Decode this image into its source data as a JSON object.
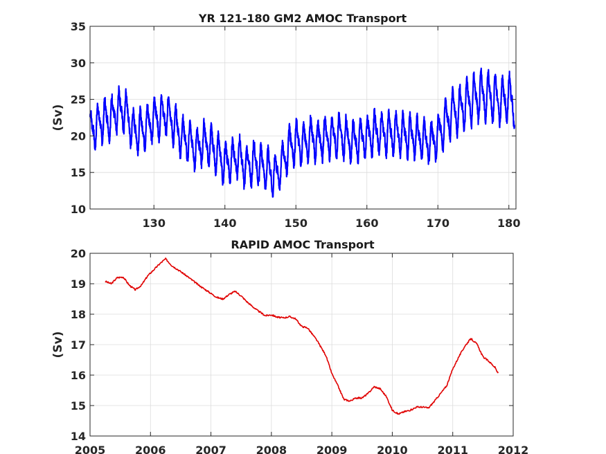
{
  "chart_data": [
    {
      "type": "line",
      "title": "YR 121-180 GM2 AMOC Transport",
      "xlabel": "",
      "ylabel": "(Sv)",
      "xlim": [
        121,
        181
      ],
      "ylim": [
        10,
        35
      ],
      "xticks": [
        130,
        140,
        150,
        160,
        170,
        180
      ],
      "yticks": [
        10,
        15,
        20,
        25,
        30,
        35
      ],
      "grid": true,
      "color": "#0000ff",
      "series": [
        {
          "x": [
            121,
            122,
            123,
            124,
            125,
            126,
            127,
            128,
            129,
            130,
            131,
            132,
            133,
            134,
            135,
            136,
            137,
            138,
            139,
            140,
            141,
            142,
            143,
            144,
            145,
            146,
            147,
            148,
            149,
            150,
            151,
            152,
            153,
            154,
            155,
            156,
            157,
            158,
            159,
            160,
            161,
            162,
            163,
            164,
            165,
            166,
            167,
            168,
            169,
            170,
            171,
            172,
            173,
            174,
            175,
            176,
            177,
            178,
            179,
            180,
            181
          ],
          "y": [
            20.5,
            21.5,
            22.2,
            22.5,
            23.5,
            23.5,
            20.7,
            20.7,
            21.3,
            22.5,
            22.5,
            23.0,
            21.2,
            19.8,
            19.2,
            18.2,
            19.2,
            18.6,
            17.5,
            16.2,
            16.7,
            17.2,
            15.5,
            16.5,
            16.0,
            15.5,
            14.5,
            16.0,
            18.5,
            19.2,
            18.8,
            19.8,
            19.2,
            19.8,
            19.8,
            20.2,
            19.8,
            19.3,
            19.5,
            19.8,
            20.5,
            20.3,
            20.3,
            20.3,
            20.2,
            20.0,
            19.8,
            19.5,
            19.0,
            20.0,
            21.8,
            23.2,
            23.5,
            24.5,
            25.0,
            25.5,
            25.5,
            25.2,
            24.8,
            25.3,
            24.5
          ],
          "seasonal_amplitude": [
            2.5,
            2.5,
            2.5,
            2.5,
            2.5,
            2.5,
            2.5,
            2.5,
            2.5,
            2.5,
            2.5,
            2.5,
            2.5,
            2.5,
            2.5,
            2.5,
            2.5,
            2.5,
            2.5,
            2.5,
            2.5,
            2.5,
            2.5,
            2.5,
            2.5,
            2.5,
            2.5,
            2.5,
            2.5,
            2.5,
            2.5,
            2.5,
            2.5,
            2.5,
            2.5,
            2.5,
            2.5,
            2.5,
            2.5,
            2.5,
            2.5,
            2.5,
            2.5,
            2.5,
            2.5,
            2.5,
            2.5,
            2.5,
            2.5,
            2.5,
            2.8,
            2.8,
            2.8,
            3.0,
            3.0,
            3.0,
            3.0,
            3.0,
            2.8,
            2.8,
            2.8
          ]
        }
      ]
    },
    {
      "type": "line",
      "title": "RAPID AMOC Transport",
      "xlabel": "",
      "ylabel": "(Sv)",
      "xlim": [
        2005,
        2012
      ],
      "ylim": [
        14,
        20
      ],
      "xticks": [
        2005,
        2006,
        2007,
        2008,
        2009,
        2010,
        2011,
        2012
      ],
      "yticks": [
        14,
        15,
        16,
        17,
        18,
        19,
        20
      ],
      "grid": true,
      "color": "#e00000",
      "series": [
        {
          "x": [
            2005.25,
            2005.35,
            2005.45,
            2005.55,
            2005.65,
            2005.75,
            2005.85,
            2005.95,
            2006.05,
            2006.15,
            2006.25,
            2006.35,
            2006.5,
            2006.65,
            2006.8,
            2006.95,
            2007.1,
            2007.2,
            2007.3,
            2007.4,
            2007.5,
            2007.6,
            2007.75,
            2007.9,
            2008.0,
            2008.1,
            2008.2,
            2008.3,
            2008.4,
            2008.5,
            2008.6,
            2008.75,
            2008.9,
            2009.0,
            2009.1,
            2009.2,
            2009.3,
            2009.4,
            2009.5,
            2009.6,
            2009.7,
            2009.8,
            2009.9,
            2010.0,
            2010.1,
            2010.2,
            2010.3,
            2010.4,
            2010.5,
            2010.6,
            2010.7,
            2010.8,
            2010.9,
            2011.0,
            2011.1,
            2011.2,
            2011.3,
            2011.4,
            2011.5,
            2011.6,
            2011.7,
            2011.75
          ],
          "y": [
            19.08,
            19.0,
            19.2,
            19.22,
            18.95,
            18.8,
            18.95,
            19.25,
            19.45,
            19.65,
            19.82,
            19.6,
            19.4,
            19.18,
            18.95,
            18.75,
            18.55,
            18.5,
            18.65,
            18.75,
            18.6,
            18.4,
            18.15,
            17.95,
            17.98,
            17.9,
            17.88,
            17.92,
            17.85,
            17.6,
            17.55,
            17.15,
            16.65,
            16.05,
            15.65,
            15.2,
            15.15,
            15.25,
            15.25,
            15.4,
            15.62,
            15.55,
            15.3,
            14.85,
            14.72,
            14.8,
            14.85,
            14.95,
            14.95,
            14.92,
            15.15,
            15.4,
            15.65,
            16.2,
            16.6,
            16.95,
            17.2,
            17.02,
            16.6,
            16.45,
            16.25,
            16.05
          ]
        }
      ]
    }
  ]
}
